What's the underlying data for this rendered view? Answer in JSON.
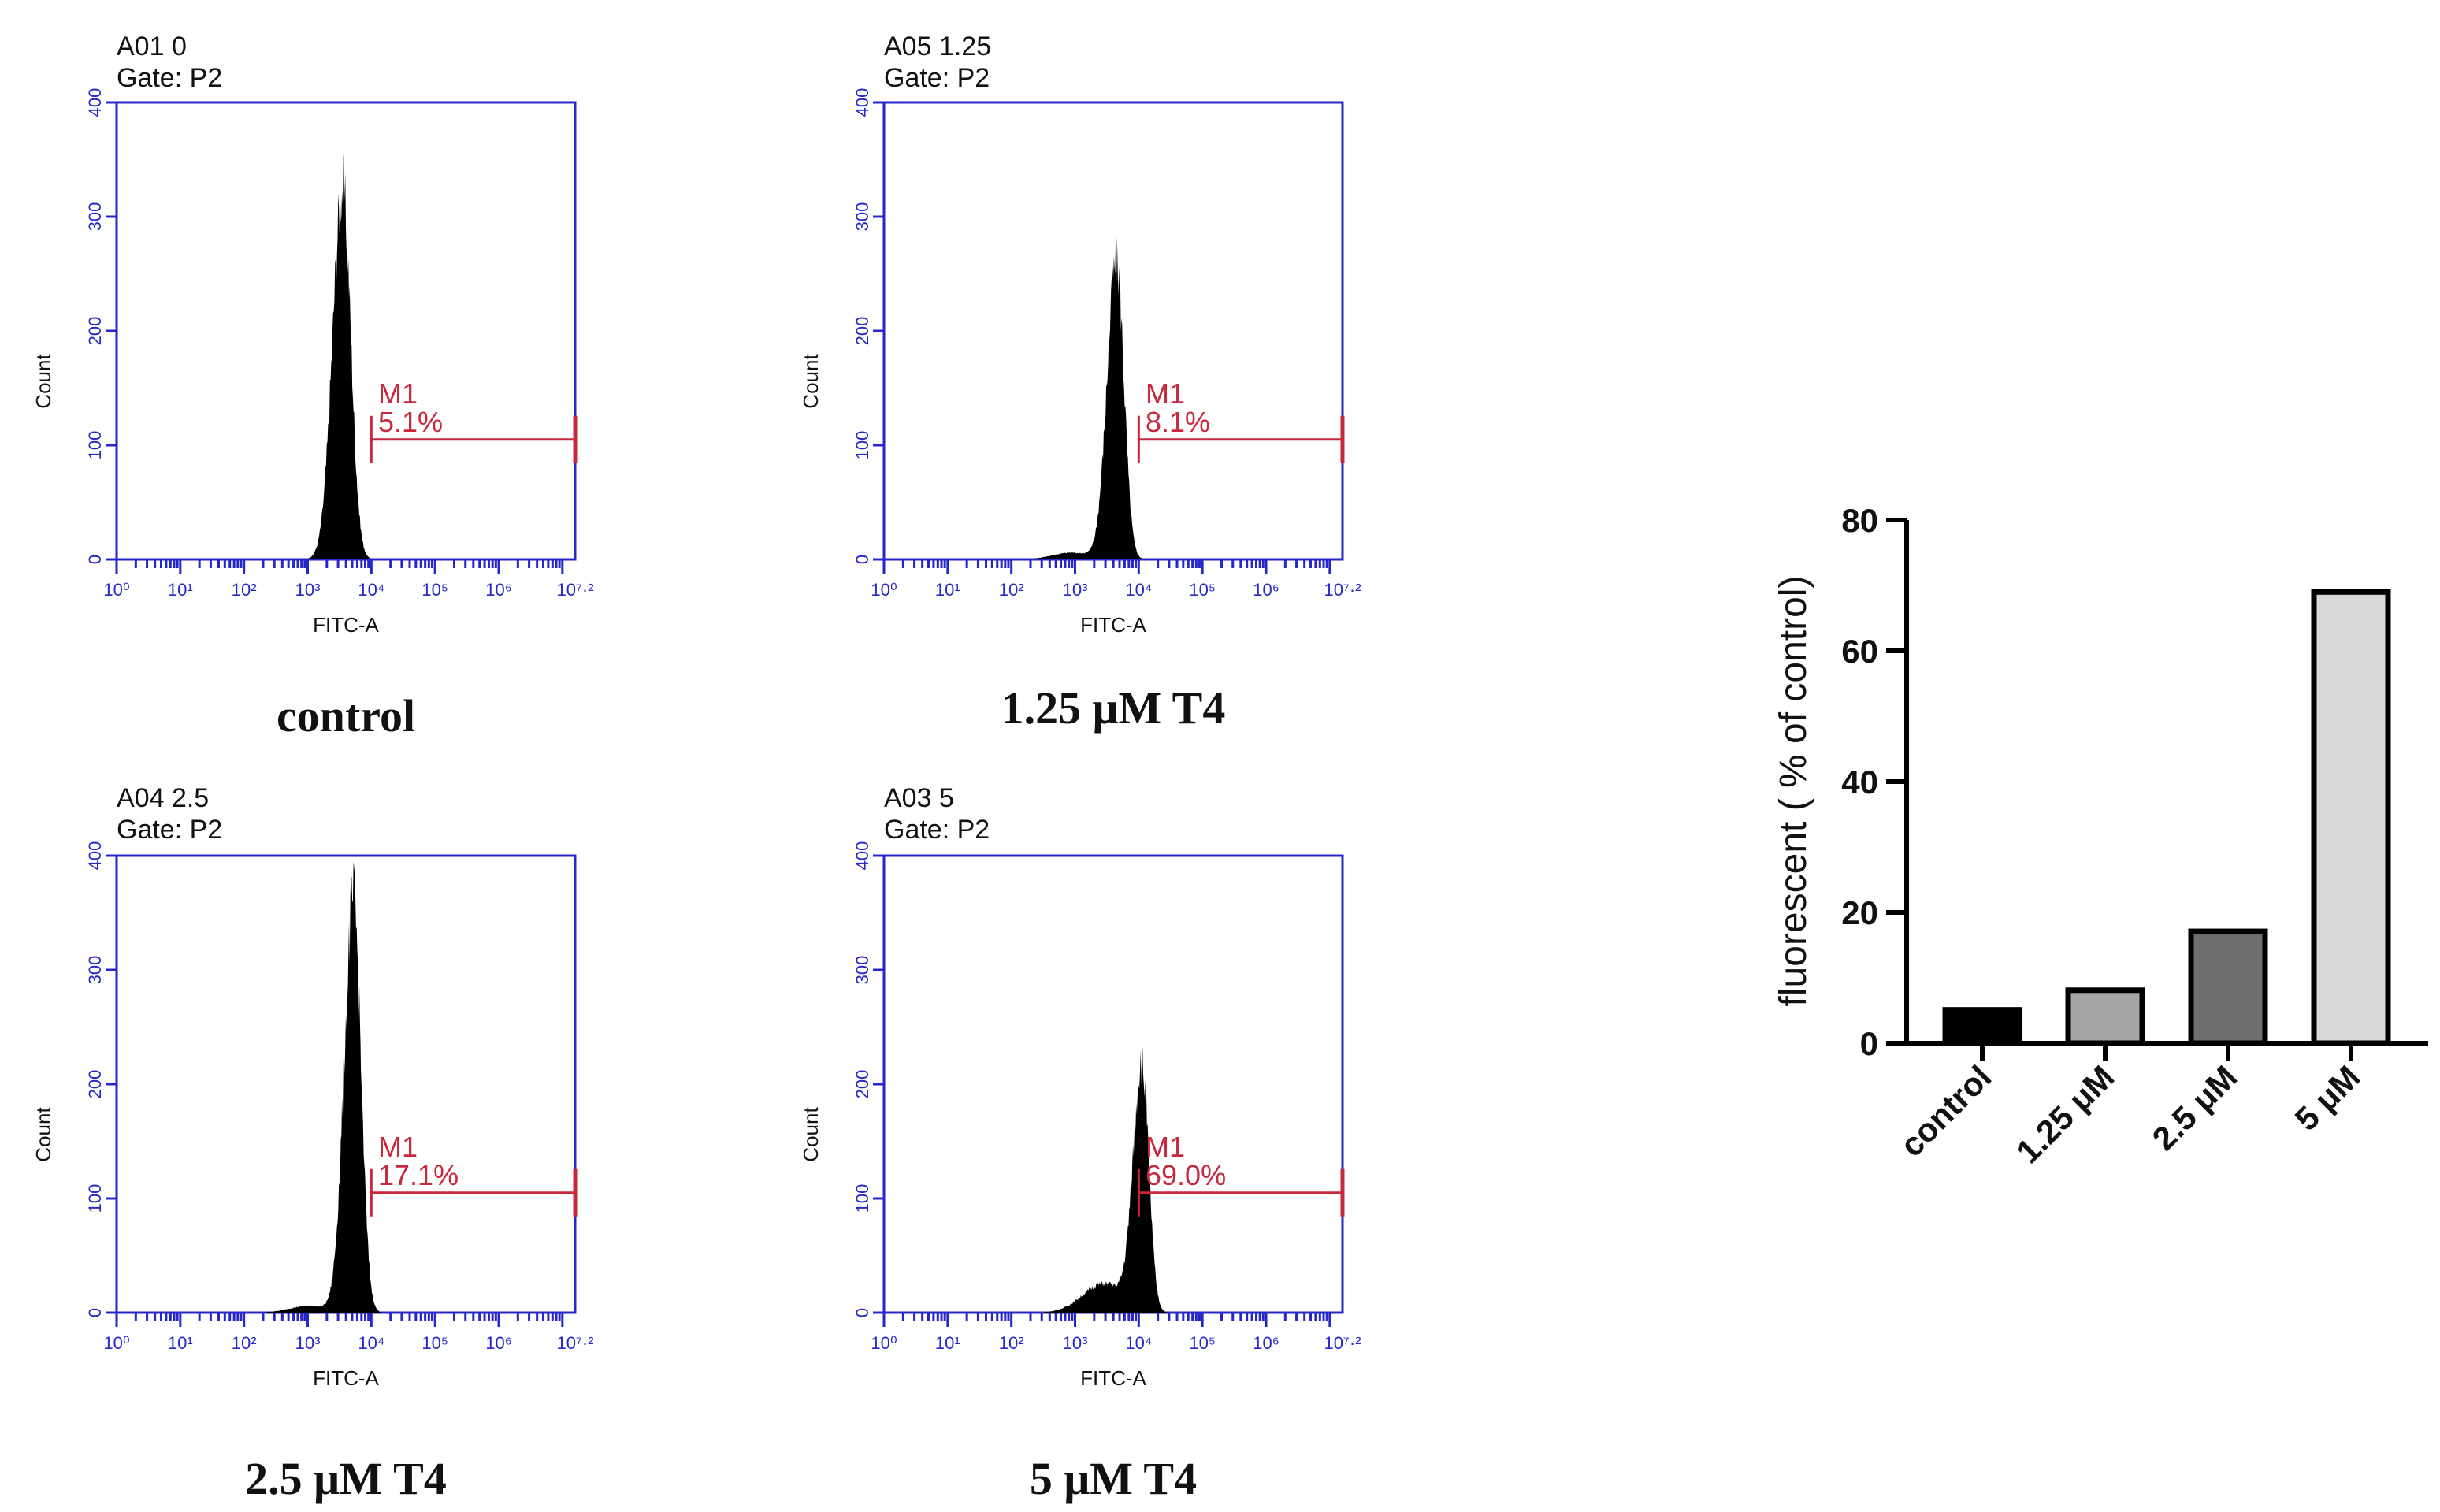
{
  "flow_panels": [
    {
      "well": "A01 0",
      "gate": "Gate: P2",
      "marker": "M1",
      "percent": "5.1%",
      "caption": "control",
      "peak_log": 3.55,
      "peak_count": 325,
      "sigma": 0.15
    },
    {
      "well": "A05 1.25",
      "gate": "Gate: P2",
      "marker": "M1",
      "percent": "8.1%",
      "caption": "1.25 μM T4",
      "peak_log": 3.65,
      "peak_count": 260,
      "sigma": 0.14
    },
    {
      "well": "A04 2.5",
      "gate": "Gate: P2",
      "marker": "M1",
      "percent": "17.1%",
      "caption": "2.5 μM T4",
      "peak_log": 3.72,
      "peak_count": 360,
      "sigma": 0.14
    },
    {
      "well": "A03 5",
      "gate": "Gate: P2",
      "marker": "M1",
      "percent": "69.0%",
      "caption": "5 μM T4",
      "peak_log": 4.05,
      "peak_count": 215,
      "sigma": 0.13
    }
  ],
  "flow_axes": {
    "xlabel": "FITC-A",
    "ylabel": "Count",
    "yticks": [
      "0",
      "100",
      "200",
      "300",
      "400"
    ],
    "ylim": [
      0,
      400
    ],
    "xticks": [
      "10⁰",
      "10¹",
      "10²",
      "10³",
      "10⁴",
      "10⁵",
      "10⁶",
      "10⁷·²"
    ],
    "xlim_log": [
      0,
      7.2
    ],
    "gate_start_log": 4.0,
    "gate_level": 105
  },
  "chart_data": {
    "type": "bar",
    "categories": [
      "control",
      "1.25 μM",
      "2.5 μM",
      "5 μM"
    ],
    "values": [
      5.1,
      8.1,
      17.1,
      69.0
    ],
    "ylabel": "fluorescent ( % of control)",
    "xlabel": "",
    "title": "",
    "ylim": [
      0,
      80
    ],
    "yticks": [
      "0",
      "20",
      "40",
      "60",
      "80"
    ],
    "colors": [
      "#000000",
      "#a6a6a6",
      "#6e6e6e",
      "#d9d9d9"
    ]
  }
}
